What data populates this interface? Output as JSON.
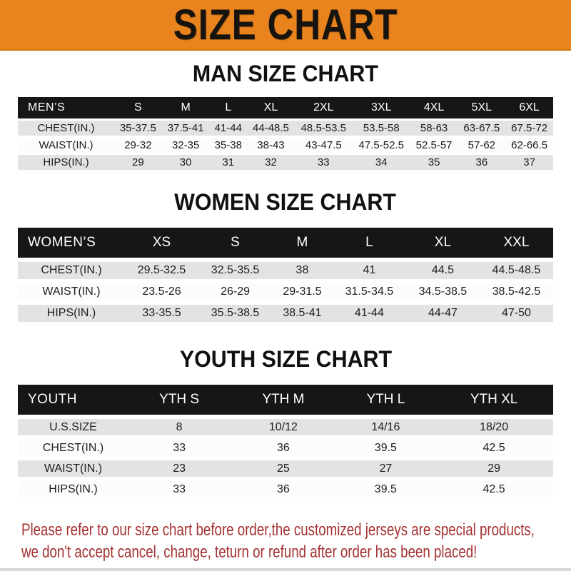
{
  "banner": {
    "title": "SIZE CHART"
  },
  "colors": {
    "banner_orange": "#E8831D",
    "table_header_black": "#161616",
    "row_gray": "#E3E3E3",
    "note_red": "#A43232"
  },
  "chart_data": [
    {
      "type": "table",
      "title": "MAN SIZE CHART",
      "corner_label": "MEN’S",
      "columns": [
        "S",
        "M",
        "L",
        "XL",
        "2XL",
        "3XL",
        "4XL",
        "5XL",
        "6XL"
      ],
      "rows": [
        {
          "label": "CHEST(IN.)",
          "values": [
            "35-37.5",
            "37.5-41",
            "41-44",
            "44-48.5",
            "48.5-53.5",
            "53.5-58",
            "58-63",
            "63-67.5",
            "67.5-72"
          ]
        },
        {
          "label": "WAIST(IN.)",
          "values": [
            "29-32",
            "32-35",
            "35-38",
            "38-43",
            "43-47.5",
            "47.5-52.5",
            "52.5-57",
            "57-62",
            "62-66.5"
          ]
        },
        {
          "label": "HIPS(IN.)",
          "values": [
            "29",
            "30",
            "31",
            "32",
            "33",
            "34",
            "35",
            "36",
            "37"
          ]
        }
      ]
    },
    {
      "type": "table",
      "title": "WOMEN SIZE CHART",
      "corner_label": "WOMEN’S",
      "columns": [
        "XS",
        "S",
        "M",
        "L",
        "XL",
        "XXL"
      ],
      "rows": [
        {
          "label": "CHEST(IN.)",
          "values": [
            "29.5-32.5",
            "32.5-35.5",
            "38",
            "41",
            "44.5",
            "44.5-48.5"
          ]
        },
        {
          "label": "WAIST(IN.)",
          "values": [
            "23.5-26",
            "26-29",
            "29-31.5",
            "31.5-34.5",
            "34.5-38.5",
            "38.5-42.5"
          ]
        },
        {
          "label": "HIPS(IN.)",
          "values": [
            "33-35.5",
            "35.5-38.5",
            "38.5-41",
            "41-44",
            "44-47",
            "47-50"
          ]
        }
      ]
    },
    {
      "type": "table",
      "title": "YOUTH SIZE CHART",
      "corner_label": "YOUTH",
      "columns": [
        "YTH S",
        "YTH M",
        "YTH L",
        "YTH XL"
      ],
      "rows": [
        {
          "label": "U.S.SIZE",
          "values": [
            "8",
            "10/12",
            "14/16",
            "18/20"
          ]
        },
        {
          "label": "CHEST(IN.)",
          "values": [
            "33",
            "36",
            "39.5",
            "42.5"
          ]
        },
        {
          "label": "WAIST(IN.)",
          "values": [
            "23",
            "25",
            "27",
            "29"
          ]
        },
        {
          "label": "HIPS(IN.)",
          "values": [
            "33",
            "36",
            "39.5",
            "42.5"
          ]
        }
      ]
    }
  ],
  "footer": {
    "line1": "Please refer to our size chart before order,the customized jerseys are special products,",
    "line2": "we don't accept cancel, change, teturn or refund after order has been placed!"
  }
}
